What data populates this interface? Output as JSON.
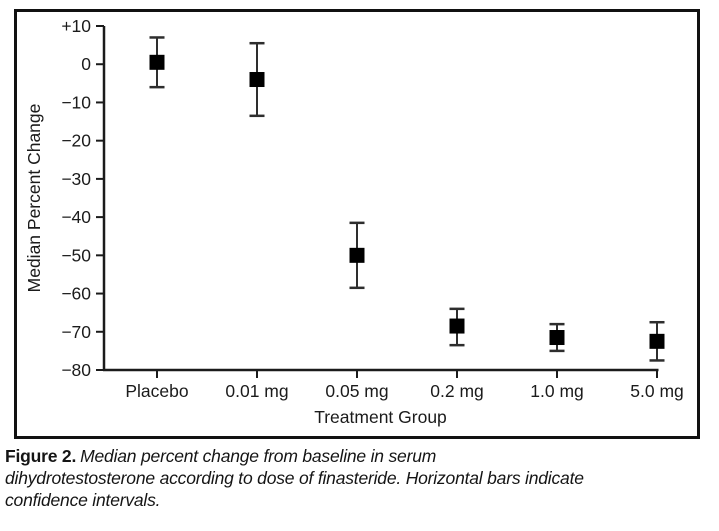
{
  "chart_data": {
    "type": "scatter",
    "subtype": "point-estimates-with-error-bars",
    "title": "",
    "xlabel": "Treatment Group",
    "ylabel": "Median Percent Change",
    "categories": [
      "Placebo",
      "0.01 mg",
      "0.05 mg",
      "0.2 mg",
      "1.0 mg",
      "5.0 mg"
    ],
    "series": [
      {
        "name": "Median percent change from baseline in serum dihydrotestosterone",
        "values": [
          0.5,
          -4,
          -50,
          -68.5,
          -71.5,
          -72.5
        ],
        "ci_high": [
          7,
          5.5,
          -41.5,
          -64,
          -68,
          -67.5
        ],
        "ci_low": [
          -6,
          -13.5,
          -58.5,
          -73.5,
          -75,
          -77.5
        ]
      }
    ],
    "ylim": [
      -80,
      10
    ],
    "yticks": [
      10,
      0,
      -10,
      -20,
      -30,
      -40,
      -50,
      -60,
      -70,
      -80
    ],
    "ytick_labels": [
      "+10",
      "0",
      "−10",
      "−20",
      "−30",
      "−40",
      "−50",
      "−60",
      "−70",
      "−80"
    ],
    "grid": false,
    "legend": "none",
    "marker": "filled-square",
    "error_bar_style": "vertical-line-with-end-caps"
  },
  "caption": {
    "label": "Figure 2.",
    "line1": "Median percent change from baseline in serum",
    "line2": "dihydrotestosterone according to dose of finasteride. Horizontal bars indicate",
    "line3": "confidence intervals."
  },
  "colors": {
    "background": "#ffffff",
    "frame": "#111111",
    "axis_ink": "#1b1b1b",
    "error_bar": "#2e2e2e",
    "marker": "#000000",
    "caption_ink": "#151515"
  }
}
